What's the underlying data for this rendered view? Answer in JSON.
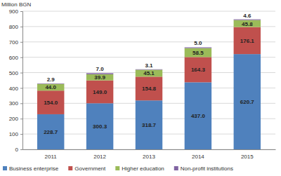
{
  "chart_data": {
    "type": "bar",
    "stacked": true,
    "y_label": "Million BGN",
    "categories": [
      "2011",
      "2012",
      "2013",
      "2014",
      "2015"
    ],
    "series": [
      {
        "name": "Business enterprise",
        "color": "#4f81bd",
        "values": [
          228.7,
          300.3,
          318.7,
          437.0,
          620.7
        ],
        "value_labels": [
          "228.7",
          "300.3",
          "318.7",
          "437.0",
          "620.7"
        ]
      },
      {
        "name": "Government",
        "color": "#c0504d",
        "values": [
          154.0,
          149.0,
          154.8,
          164.3,
          176.1
        ],
        "value_labels": [
          "154.0",
          "149.0",
          "154.8",
          "164.3",
          "176.1"
        ]
      },
      {
        "name": "Higher education",
        "color": "#9bbb59",
        "values": [
          44.0,
          39.9,
          45.1,
          58.5,
          45.8
        ],
        "value_labels": [
          "44.0",
          "39.9",
          "45.1",
          "58.5",
          "45.8"
        ]
      },
      {
        "name": "Non-profit institutions",
        "color": "#8064a2",
        "values": [
          2.9,
          7.0,
          3.1,
          5.0,
          4.6
        ],
        "value_labels": [
          "2.9",
          "7.0",
          "3.1",
          "5.0",
          "4.6"
        ]
      }
    ],
    "ylim": [
      0,
      900
    ],
    "yticks": [
      0,
      100,
      200,
      300,
      400,
      500,
      600,
      700,
      800,
      900
    ],
    "grid": true,
    "legend": "bottom",
    "data_labels": true
  }
}
